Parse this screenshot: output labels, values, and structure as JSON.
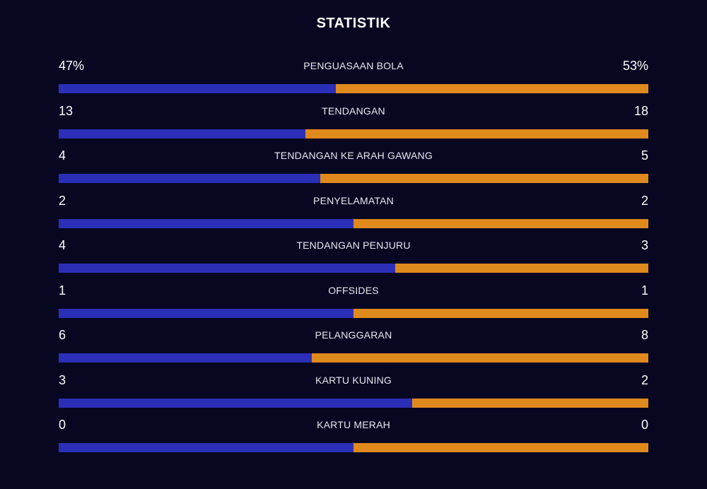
{
  "title": "STATISTIK",
  "colors": {
    "background": "#070722",
    "home": "#2b2fb8",
    "away": "#e08a1e"
  },
  "stats": [
    {
      "label": "PENGUASAAN BOLA",
      "home": "47%",
      "away": "53%",
      "home_share": 0.47
    },
    {
      "label": "TENDANGAN",
      "home": "13",
      "away": "18",
      "home_share": 0.419
    },
    {
      "label": "TENDANGAN KE ARAH GAWANG",
      "home": "4",
      "away": "5",
      "home_share": 0.444
    },
    {
      "label": "PENYELAMATAN",
      "home": "2",
      "away": "2",
      "home_share": 0.5
    },
    {
      "label": "TENDANGAN PENJURU",
      "home": "4",
      "away": "3",
      "home_share": 0.571
    },
    {
      "label": "OFFSIDES",
      "home": "1",
      "away": "1",
      "home_share": 0.5
    },
    {
      "label": "PELANGGARAN",
      "home": "6",
      "away": "8",
      "home_share": 0.429
    },
    {
      "label": "KARTU KUNING",
      "home": "3",
      "away": "2",
      "home_share": 0.6
    },
    {
      "label": "KARTU MERAH",
      "home": "0",
      "away": "0",
      "home_share": 0.5
    }
  ]
}
